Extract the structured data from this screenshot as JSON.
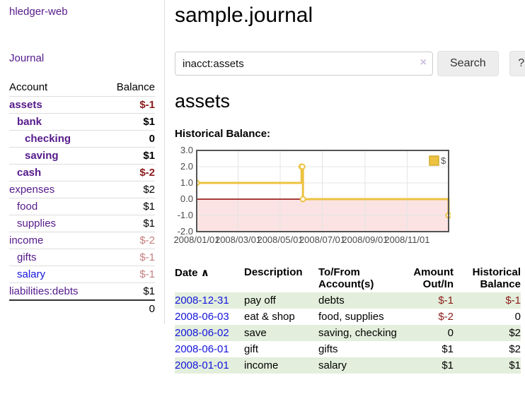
{
  "app": {
    "title": "hledger-web"
  },
  "sidebar": {
    "journal_link": "Journal",
    "account_header": "Account",
    "balance_header": "Balance",
    "accounts": [
      {
        "name": "assets",
        "balance": "$-1",
        "indent": 0,
        "selected": true,
        "balance_style": "negstrong",
        "link_style": "visited"
      },
      {
        "name": "bank",
        "balance": "$1",
        "indent": 1,
        "selected": true,
        "balance_style": "",
        "link_style": "visited"
      },
      {
        "name": "checking",
        "balance": "0",
        "indent": 2,
        "selected": true,
        "balance_style": "",
        "link_style": "visited"
      },
      {
        "name": "saving",
        "balance": "$1",
        "indent": 2,
        "selected": true,
        "balance_style": "",
        "link_style": "visited"
      },
      {
        "name": "cash",
        "balance": "$-2",
        "indent": 1,
        "selected": true,
        "balance_style": "negstrong",
        "link_style": "visited"
      },
      {
        "name": "expenses",
        "balance": "$2",
        "indent": 0,
        "selected": false,
        "balance_style": "",
        "link_style": "visited"
      },
      {
        "name": "food",
        "balance": "$1",
        "indent": 1,
        "selected": false,
        "balance_style": "",
        "link_style": "visited"
      },
      {
        "name": "supplies",
        "balance": "$1",
        "indent": 1,
        "selected": false,
        "balance_style": "",
        "link_style": "visited"
      },
      {
        "name": "income",
        "balance": "$-2",
        "indent": 0,
        "selected": false,
        "balance_style": "negmuted",
        "link_style": "visited"
      },
      {
        "name": "gifts",
        "balance": "$-1",
        "indent": 1,
        "selected": false,
        "balance_style": "negmuted",
        "link_style": "visited"
      },
      {
        "name": "salary",
        "balance": "$-1",
        "indent": 1,
        "selected": false,
        "balance_style": "negmuted",
        "link_style": "unvisited"
      },
      {
        "name": "liabilities:debts",
        "balance": "$1",
        "indent": 0,
        "selected": false,
        "balance_style": "",
        "link_style": "visited"
      }
    ],
    "total": "0"
  },
  "main": {
    "title": "sample.journal",
    "search": {
      "value": "inacct:assets",
      "clear_icon": "×",
      "search_button": "Search",
      "help_button": "?"
    },
    "account_heading": "assets",
    "chart_label": "Historical Balance:"
  },
  "chart_data": {
    "type": "line",
    "title": "Historical Balance",
    "step": true,
    "series": [
      {
        "name": "$",
        "color": "#EDC240",
        "points": [
          [
            "2008-01-01",
            1
          ],
          [
            "2008-06-01",
            2
          ],
          [
            "2008-06-02",
            2
          ],
          [
            "2008-06-03",
            0
          ],
          [
            "2008-12-31",
            -1
          ]
        ]
      }
    ],
    "ylim": [
      -2,
      3
    ],
    "y_ticks": [
      3.0,
      2.0,
      1.0,
      0.0,
      -1.0,
      -2.0
    ],
    "x_ticks": [
      "2008/01/01",
      "2008/03/01",
      "2008/05/01",
      "2008/07/01",
      "2008/09/01",
      "2008/11/01"
    ],
    "x_domain": [
      "2008-01-01",
      "2008-12-31"
    ],
    "legend": "$",
    "legend_position": "top-right",
    "grid": true,
    "negative_region_fill": "#FBE3E3",
    "zero_line_color": "#8B0000",
    "border_color": "#545454",
    "gridline_color": "#E4E4E4"
  },
  "register": {
    "headers": {
      "date": "Date",
      "sort_icon": "∧",
      "description": "Description",
      "accounts": "To/From Account(s)",
      "amount": "Amount Out/In",
      "balance": "Historical Balance"
    },
    "rows": [
      {
        "date": "2008-12-31",
        "description": "pay off",
        "accounts": "debts",
        "amount": "$-1",
        "amount_negative": true,
        "balance": "$-1",
        "balance_negative": true
      },
      {
        "date": "2008-06-03",
        "description": "eat & shop",
        "accounts": "food, supplies",
        "amount": "$-2",
        "amount_negative": true,
        "balance": "0",
        "balance_negative": false
      },
      {
        "date": "2008-06-02",
        "description": "save",
        "accounts": "saving, checking",
        "amount": "0",
        "amount_negative": false,
        "balance": "$2",
        "balance_negative": false
      },
      {
        "date": "2008-06-01",
        "description": "gift",
        "accounts": "gifts",
        "amount": "$1",
        "amount_negative": false,
        "balance": "$2",
        "balance_negative": false
      },
      {
        "date": "2008-01-01",
        "description": "income",
        "accounts": "salary",
        "amount": "$1",
        "amount_negative": false,
        "balance": "$1",
        "balance_negative": false
      }
    ]
  },
  "colors": {
    "link_visited": "#551A8B",
    "link_unvisited": "#1414DD",
    "negative_strong": "#8B1A1A",
    "negative_muted": "#C57E7E",
    "row_stripe_green": "#E3EFDC",
    "series_yellow": "#EDC240"
  }
}
